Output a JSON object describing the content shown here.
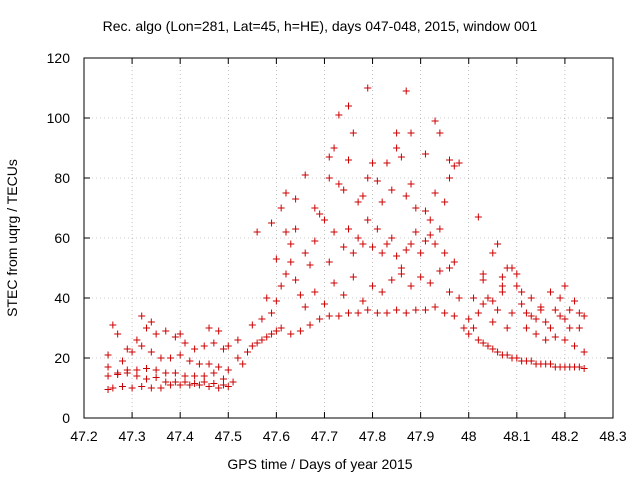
{
  "chart_data": {
    "type": "scatter",
    "title": "Rec. algo (Lon=281, Lat=45, h=HE), days 047-048, 2015, window 001",
    "xlabel": "GPS time / Days of year 2015",
    "ylabel": "STEC from uqrg / TECUs",
    "xlim": [
      47.2,
      48.3
    ],
    "ylim": [
      0,
      120
    ],
    "xticks": [
      "47.2",
      "47.3",
      "47.4",
      "47.5",
      "47.6",
      "47.7",
      "47.8",
      "47.9",
      "48",
      "48.1",
      "48.2",
      "48.3"
    ],
    "yticks": [
      "0",
      "20",
      "40",
      "60",
      "80",
      "100",
      "120"
    ],
    "grid": true,
    "marker": "plus",
    "color": "#cc0000",
    "series": [
      {
        "points": [
          [
            47.25,
            9.5
          ],
          [
            47.26,
            10
          ],
          [
            47.28,
            10.5
          ],
          [
            47.3,
            10
          ],
          [
            47.32,
            10.5
          ],
          [
            47.34,
            10
          ],
          [
            47.36,
            10
          ],
          [
            47.38,
            11
          ],
          [
            47.4,
            11
          ],
          [
            47.42,
            11
          ],
          [
            47.44,
            11
          ],
          [
            47.46,
            10.5
          ],
          [
            47.48,
            10
          ],
          [
            47.5,
            10.5
          ],
          [
            47.25,
            14
          ],
          [
            47.27,
            14.5
          ],
          [
            47.29,
            15
          ],
          [
            47.31,
            14
          ],
          [
            47.33,
            13
          ],
          [
            47.35,
            13.5
          ],
          [
            47.37,
            12
          ],
          [
            47.39,
            12
          ],
          [
            47.41,
            12
          ],
          [
            47.43,
            11.5
          ],
          [
            47.45,
            12
          ],
          [
            47.47,
            11.5
          ],
          [
            47.49,
            11
          ],
          [
            47.51,
            12
          ],
          [
            47.25,
            17
          ],
          [
            47.27,
            15
          ],
          [
            47.29,
            16
          ],
          [
            47.31,
            16
          ],
          [
            47.33,
            16.5
          ],
          [
            47.35,
            16
          ],
          [
            47.37,
            15
          ],
          [
            47.39,
            15
          ],
          [
            47.41,
            14
          ],
          [
            47.43,
            14
          ],
          [
            47.45,
            14
          ],
          [
            47.47,
            15
          ],
          [
            47.49,
            13
          ],
          [
            47.25,
            21
          ],
          [
            47.28,
            19
          ],
          [
            47.3,
            22
          ],
          [
            47.32,
            24
          ],
          [
            47.34,
            22
          ],
          [
            47.36,
            20
          ],
          [
            47.38,
            20
          ],
          [
            47.4,
            21
          ],
          [
            47.42,
            19
          ],
          [
            47.44,
            18
          ],
          [
            47.46,
            18
          ],
          [
            47.48,
            17
          ],
          [
            47.5,
            16
          ],
          [
            47.27,
            28
          ],
          [
            47.29,
            23
          ],
          [
            47.31,
            26
          ],
          [
            47.33,
            30
          ],
          [
            47.35,
            28
          ],
          [
            47.37,
            29
          ],
          [
            47.39,
            27
          ],
          [
            47.41,
            25
          ],
          [
            47.43,
            23
          ],
          [
            47.45,
            24
          ],
          [
            47.47,
            25
          ],
          [
            47.49,
            23
          ],
          [
            47.26,
            31
          ],
          [
            47.32,
            34
          ],
          [
            47.34,
            32
          ],
          [
            47.4,
            28
          ],
          [
            47.46,
            30
          ],
          [
            47.48,
            29
          ],
          [
            47.5,
            24
          ],
          [
            47.52,
            26
          ],
          [
            47.52,
            20
          ],
          [
            47.53,
            18
          ],
          [
            47.54,
            22
          ],
          [
            47.55,
            24
          ],
          [
            47.56,
            25
          ],
          [
            47.57,
            26
          ],
          [
            47.58,
            27
          ],
          [
            47.59,
            28
          ],
          [
            47.6,
            29
          ],
          [
            47.61,
            30
          ],
          [
            47.63,
            28
          ],
          [
            47.65,
            29
          ],
          [
            47.67,
            31
          ],
          [
            47.69,
            33
          ],
          [
            47.71,
            34
          ],
          [
            47.73,
            34
          ],
          [
            47.75,
            35
          ],
          [
            47.77,
            35
          ],
          [
            47.79,
            36
          ],
          [
            47.81,
            35
          ],
          [
            47.83,
            35
          ],
          [
            47.85,
            36
          ],
          [
            47.87,
            35
          ],
          [
            47.89,
            36
          ],
          [
            47.91,
            36
          ],
          [
            47.93,
            37
          ],
          [
            47.95,
            35
          ],
          [
            47.97,
            34
          ],
          [
            47.99,
            30
          ],
          [
            47.55,
            31
          ],
          [
            47.57,
            33
          ],
          [
            47.59,
            35
          ],
          [
            47.6,
            39
          ],
          [
            47.61,
            44
          ],
          [
            47.62,
            48
          ],
          [
            47.63,
            52
          ],
          [
            47.64,
            46
          ],
          [
            47.65,
            41
          ],
          [
            47.66,
            37
          ],
          [
            47.68,
            42
          ],
          [
            47.7,
            38
          ],
          [
            47.72,
            45
          ],
          [
            47.74,
            41
          ],
          [
            47.76,
            47
          ],
          [
            47.78,
            39
          ],
          [
            47.8,
            44
          ],
          [
            47.82,
            42
          ],
          [
            47.84,
            46
          ],
          [
            47.86,
            48
          ],
          [
            47.88,
            44
          ],
          [
            47.9,
            47
          ],
          [
            47.92,
            45
          ],
          [
            47.94,
            49
          ],
          [
            47.96,
            42
          ],
          [
            47.98,
            40
          ],
          [
            47.58,
            40
          ],
          [
            47.6,
            53
          ],
          [
            47.62,
            62
          ],
          [
            47.63,
            58
          ],
          [
            47.64,
            63
          ],
          [
            47.66,
            55
          ],
          [
            47.67,
            51
          ],
          [
            47.68,
            59
          ],
          [
            47.7,
            66
          ],
          [
            47.71,
            52
          ],
          [
            47.72,
            62
          ],
          [
            47.74,
            57
          ],
          [
            47.75,
            63
          ],
          [
            47.76,
            55
          ],
          [
            47.77,
            60
          ],
          [
            47.78,
            58
          ],
          [
            47.79,
            66
          ],
          [
            47.8,
            57
          ],
          [
            47.81,
            63
          ],
          [
            47.82,
            55
          ],
          [
            47.83,
            58
          ],
          [
            47.84,
            60
          ],
          [
            47.85,
            54
          ],
          [
            47.86,
            50
          ],
          [
            47.87,
            56
          ],
          [
            47.88,
            58
          ],
          [
            47.89,
            62
          ],
          [
            47.9,
            55
          ],
          [
            47.91,
            59
          ],
          [
            47.92,
            61
          ],
          [
            47.93,
            58
          ],
          [
            47.94,
            63
          ],
          [
            47.95,
            55
          ],
          [
            47.96,
            50
          ],
          [
            47.97,
            52
          ],
          [
            47.56,
            62
          ],
          [
            47.59,
            65
          ],
          [
            47.61,
            70
          ],
          [
            47.62,
            75
          ],
          [
            47.64,
            73
          ],
          [
            47.66,
            81
          ],
          [
            47.68,
            70
          ],
          [
            47.69,
            68
          ],
          [
            47.71,
            80
          ],
          [
            47.72,
            90
          ],
          [
            47.73,
            78
          ],
          [
            47.74,
            76
          ],
          [
            47.75,
            86
          ],
          [
            47.77,
            72
          ],
          [
            47.78,
            74
          ],
          [
            47.79,
            80
          ],
          [
            47.8,
            85
          ],
          [
            47.81,
            79
          ],
          [
            47.82,
            72
          ],
          [
            47.84,
            76
          ],
          [
            47.85,
            90
          ],
          [
            47.86,
            87
          ],
          [
            47.87,
            74
          ],
          [
            47.88,
            78
          ],
          [
            47.89,
            70
          ],
          [
            47.91,
            69
          ],
          [
            47.92,
            66
          ],
          [
            47.93,
            75
          ],
          [
            47.95,
            72
          ],
          [
            47.96,
            80
          ],
          [
            47.97,
            84
          ],
          [
            47.71,
            87
          ],
          [
            47.73,
            101
          ],
          [
            47.75,
            104
          ],
          [
            47.76,
            95
          ],
          [
            47.79,
            110
          ],
          [
            47.83,
            85
          ],
          [
            47.85,
            95
          ],
          [
            47.87,
            109
          ],
          [
            47.88,
            95
          ],
          [
            47.91,
            88
          ],
          [
            47.93,
            99
          ],
          [
            47.94,
            95
          ],
          [
            47.96,
            86
          ],
          [
            47.98,
            85
          ],
          [
            48.0,
            28
          ],
          [
            48.01,
            30
          ],
          [
            48.02,
            26
          ],
          [
            48.03,
            25
          ],
          [
            48.04,
            24
          ],
          [
            48.05,
            23
          ],
          [
            48.06,
            22
          ],
          [
            48.07,
            21
          ],
          [
            48.08,
            21
          ],
          [
            48.09,
            20
          ],
          [
            48.1,
            20
          ],
          [
            48.11,
            19
          ],
          [
            48.12,
            19
          ],
          [
            48.13,
            19
          ],
          [
            48.14,
            18
          ],
          [
            48.15,
            18
          ],
          [
            48.16,
            18
          ],
          [
            48.17,
            18
          ],
          [
            48.18,
            17
          ],
          [
            48.19,
            17
          ],
          [
            48.2,
            17
          ],
          [
            48.21,
            17
          ],
          [
            48.22,
            17
          ],
          [
            48.23,
            17
          ],
          [
            48.24,
            16.5
          ],
          [
            48.0,
            33
          ],
          [
            48.02,
            35
          ],
          [
            48.03,
            38
          ],
          [
            48.04,
            40
          ],
          [
            48.05,
            32
          ],
          [
            48.06,
            36
          ],
          [
            48.07,
            42
          ],
          [
            48.08,
            30
          ],
          [
            48.09,
            35
          ],
          [
            48.1,
            48
          ],
          [
            48.11,
            38
          ],
          [
            48.12,
            30
          ],
          [
            48.13,
            34
          ],
          [
            48.14,
            28
          ],
          [
            48.15,
            36
          ],
          [
            48.16,
            26
          ],
          [
            48.17,
            30
          ],
          [
            48.18,
            27
          ],
          [
            48.19,
            34
          ],
          [
            48.2,
            26
          ],
          [
            48.21,
            30
          ],
          [
            48.22,
            24
          ],
          [
            48.23,
            30
          ],
          [
            48.24,
            22
          ],
          [
            48.01,
            40
          ],
          [
            48.03,
            48
          ],
          [
            48.05,
            55
          ],
          [
            48.06,
            58
          ],
          [
            48.07,
            44
          ],
          [
            48.09,
            50
          ],
          [
            48.1,
            44
          ],
          [
            48.11,
            42
          ],
          [
            48.13,
            40
          ],
          [
            48.15,
            37
          ],
          [
            48.17,
            42
          ],
          [
            48.19,
            40
          ],
          [
            48.2,
            44
          ],
          [
            48.21,
            36
          ],
          [
            48.22,
            39
          ],
          [
            48.23,
            35
          ],
          [
            48.24,
            34
          ],
          [
            48.02,
            67
          ],
          [
            48.03,
            46
          ],
          [
            48.05,
            39
          ],
          [
            48.07,
            47
          ],
          [
            48.08,
            50
          ],
          [
            48.12,
            35
          ],
          [
            48.14,
            33
          ],
          [
            48.16,
            32
          ],
          [
            48.18,
            36
          ],
          [
            48.2,
            33
          ]
        ]
      }
    ]
  }
}
